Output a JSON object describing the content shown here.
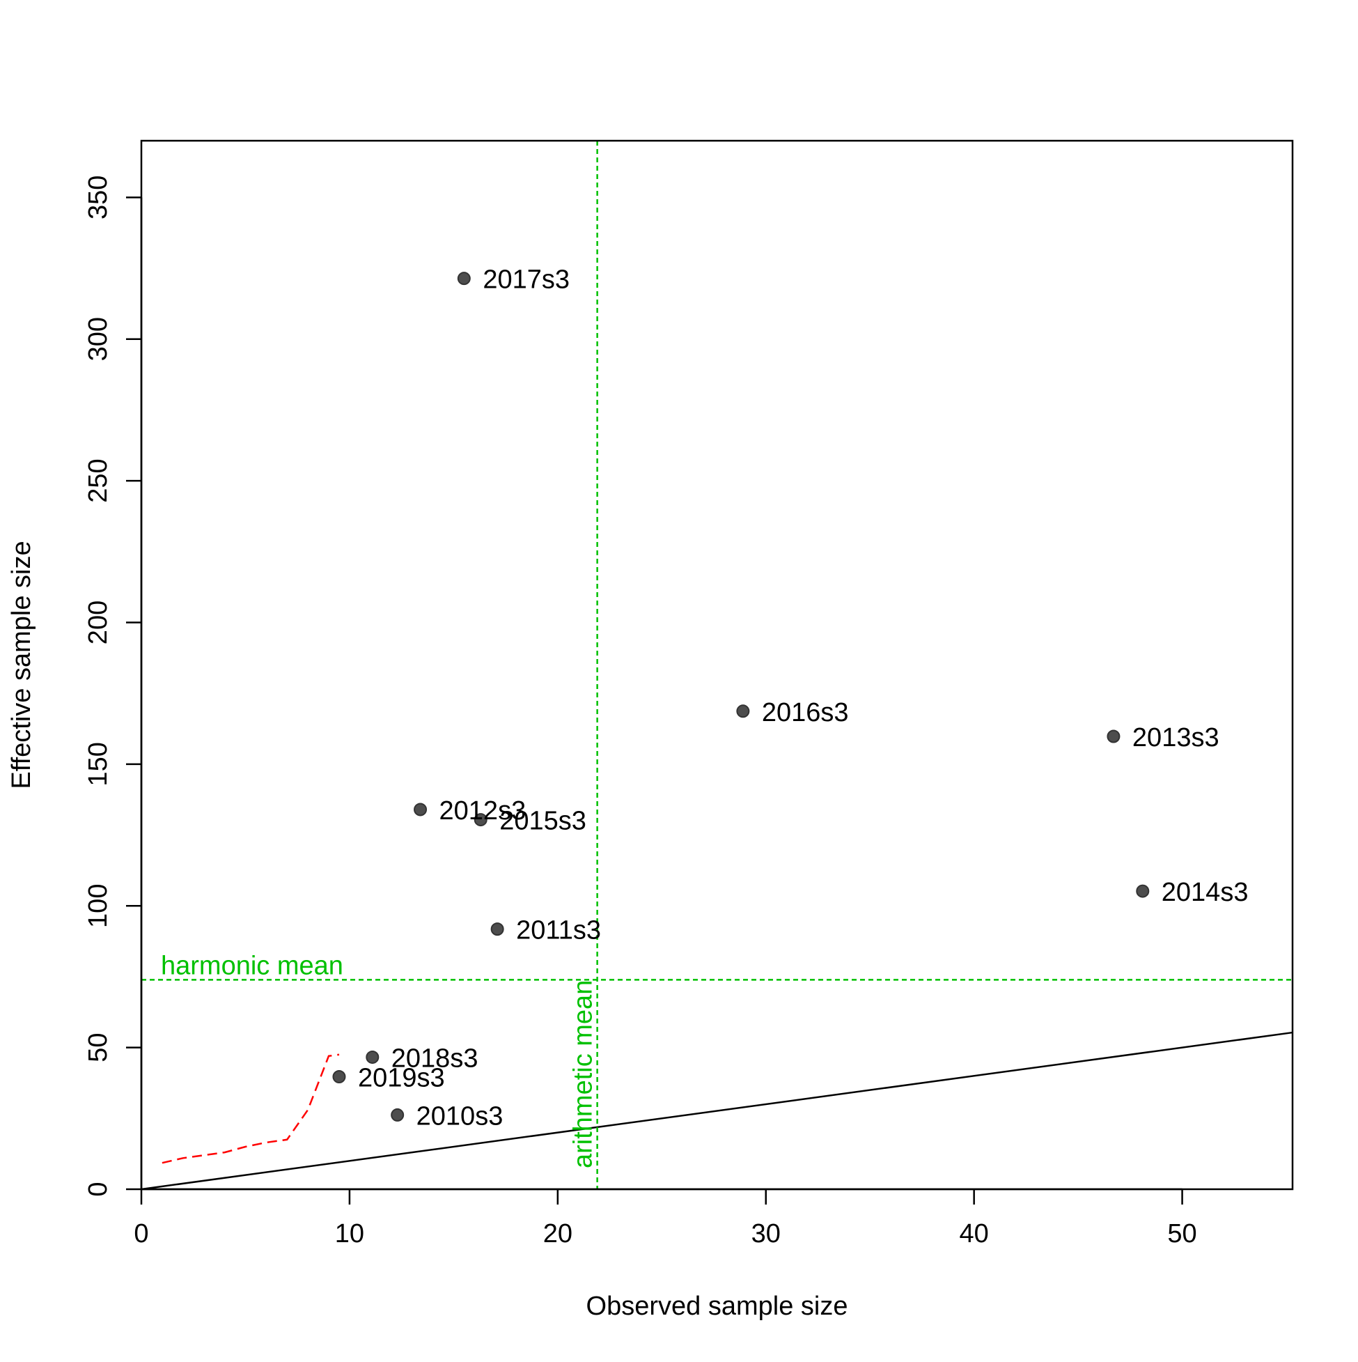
{
  "chart_data": {
    "type": "scatter",
    "title": "",
    "xlabel": "Observed sample size",
    "ylabel": "Effective sample size",
    "xlim": [
      0,
      55.3
    ],
    "ylim": [
      0,
      370
    ],
    "xticks": [
      0,
      10,
      20,
      30,
      40,
      50
    ],
    "yticks": [
      0,
      50,
      100,
      150,
      200,
      250,
      300,
      350
    ],
    "xtick_labels": [
      "0",
      "10",
      "20",
      "30",
      "40",
      "50"
    ],
    "ytick_labels": [
      "0",
      "50",
      "100",
      "150",
      "200",
      "250",
      "300",
      "350"
    ],
    "grid": false,
    "points": [
      {
        "label": "2010s3",
        "x": 12.3,
        "y": 26.2
      },
      {
        "label": "2011s3",
        "x": 17.1,
        "y": 91.8
      },
      {
        "label": "2012s3",
        "x": 13.4,
        "y": 134.0
      },
      {
        "label": "2013s3",
        "x": 46.7,
        "y": 159.8
      },
      {
        "label": "2014s3",
        "x": 48.1,
        "y": 105.2
      },
      {
        "label": "2015s3",
        "x": 16.3,
        "y": 130.4
      },
      {
        "label": "2016s3",
        "x": 28.9,
        "y": 168.7
      },
      {
        "label": "2017s3",
        "x": 15.5,
        "y": 321.4
      },
      {
        "label": "2018s3",
        "x": 11.1,
        "y": 46.6
      },
      {
        "label": "2019s3",
        "x": 9.5,
        "y": 39.7
      }
    ],
    "identity_line": {
      "slope": 1,
      "intercept": 0
    },
    "smoother": [
      {
        "x": 1.0,
        "y": 9.3
      },
      {
        "x": 2.0,
        "y": 11.0
      },
      {
        "x": 3.0,
        "y": 12.0
      },
      {
        "x": 4.0,
        "y": 13.0
      },
      {
        "x": 5.0,
        "y": 15.0
      },
      {
        "x": 6.0,
        "y": 16.5
      },
      {
        "x": 7.0,
        "y": 17.5
      },
      {
        "x": 8.0,
        "y": 28.0
      },
      {
        "x": 9.0,
        "y": 47.0
      },
      {
        "x": 9.5,
        "y": 47.5
      }
    ],
    "harmonic_mean": {
      "label": "harmonic mean",
      "value": 73.9
    },
    "arithmetic_mean": {
      "label": "arithmetic mean",
      "value": 21.9
    },
    "colors": {
      "points": "#4d4d4d",
      "mean_lines": "#00c000",
      "smoother": "#ff0000",
      "identity": "#000000"
    }
  }
}
